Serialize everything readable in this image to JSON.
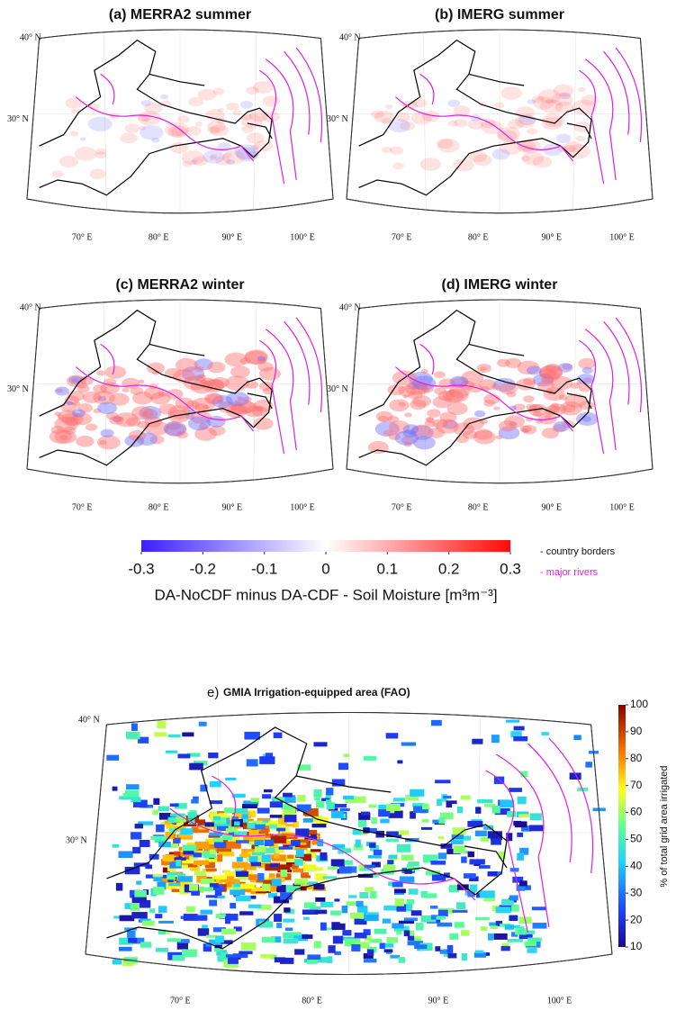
{
  "panels": [
    {
      "title": "(a) MERRA2 summer",
      "lat_labels": [
        "40° N",
        "30° N"
      ],
      "lon_labels": [
        "70° E",
        "80° E",
        "90° E",
        "100° E"
      ]
    },
    {
      "title": "(b) IMERG summer",
      "lat_labels": [
        "40° N",
        "30° N"
      ],
      "lon_labels": [
        "70° E",
        "80° E",
        "90° E",
        "100° E"
      ]
    },
    {
      "title": "(c) MERRA2 winter",
      "lat_labels": [
        "40° N",
        "30° N"
      ],
      "lon_labels": [
        "70° E",
        "80° E",
        "90° E",
        "100° E"
      ]
    },
    {
      "title": "(d) IMERG winter",
      "lat_labels": [
        "40° N",
        "30° N"
      ],
      "lon_labels": [
        "70° E",
        "80° E",
        "90° E",
        "100° E"
      ]
    }
  ],
  "colorbar": {
    "ticks": [
      -0.3,
      -0.2,
      -0.1,
      0,
      0.1,
      0.2,
      0.3
    ],
    "label": "DA-NoCDF minus DA-CDF  - Soil Moisture [m³m⁻³]"
  },
  "legend": [
    "- country borders",
    "- major rivers"
  ],
  "panel_e": {
    "label": "e)",
    "title": "GMIA Irrigation-equipped area (FAO)",
    "lat_labels": [
      "40° N",
      "30° N"
    ],
    "lon_labels": [
      "70° E",
      "80° E",
      "90° E",
      "100° E"
    ],
    "colorbar": {
      "ticks": [
        10,
        20,
        30,
        40,
        50,
        60,
        70,
        80,
        90,
        100
      ],
      "label": "% of total grid area irrigated"
    }
  }
}
